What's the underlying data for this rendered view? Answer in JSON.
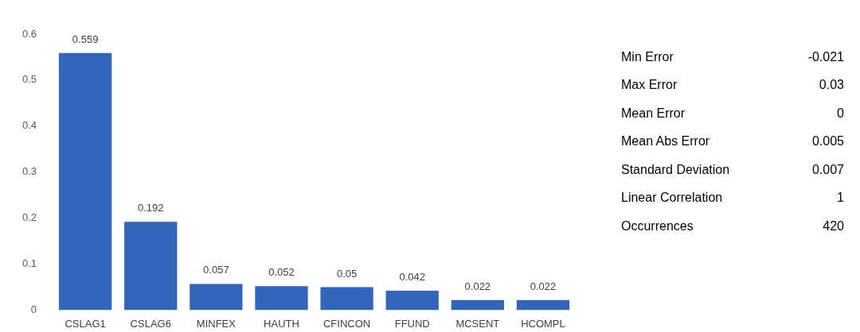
{
  "chart_data": [
    {
      "type": "bar",
      "categories": [
        "CSLAG1",
        "CSLAG6",
        "MINFEX",
        "HAUTH",
        "CFINCON",
        "FFUND",
        "MCSENT",
        "HCOMPL"
      ],
      "values": [
        0.559,
        0.192,
        0.057,
        0.052,
        0.05,
        0.042,
        0.022,
        0.022
      ],
      "color": "#3366bb",
      "ylim": [
        0,
        0.6
      ],
      "yticks": [
        0,
        0.1,
        0.2,
        0.3,
        0.4,
        0.5,
        0.6
      ],
      "grid": false,
      "data_labels": true
    },
    {
      "type": "other",
      "annotations": [
        "Min Error",
        "-0.021",
        "Max Error",
        "0.03",
        "Mean Error",
        "0",
        "Mean Abs Error",
        "0.005",
        "Standard Deviation",
        "0.007",
        "Linear Correlation",
        "1",
        "Occurrences",
        "420"
      ]
    }
  ]
}
